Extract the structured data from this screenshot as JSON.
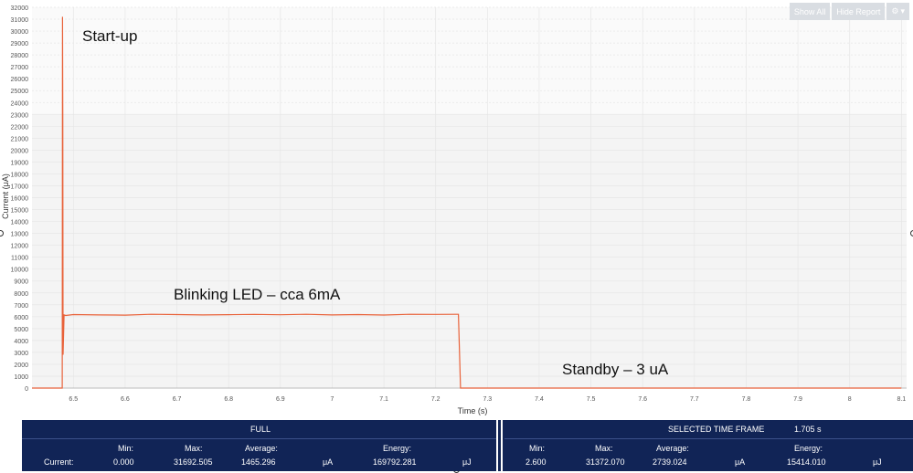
{
  "toolbar": {
    "show_all": "Show All",
    "hide_report": "Hide Report",
    "settings_icon": "gear-icon",
    "dropdown_icon": "chevron-down-icon"
  },
  "annotations": {
    "startup": "Start-up",
    "blinking": "Blinking LED – cca 6mA",
    "standby": "Standby – 3 uA"
  },
  "colors": {
    "trace": "#e8623a",
    "report_bg": "#112456",
    "selection_band": "#f4f4f4"
  },
  "chart_data": {
    "type": "line",
    "xlabel": "Time (s)",
    "ylabel": "Current (μA)",
    "xlim": [
      6.42,
      8.11
    ],
    "ylim": [
      0,
      32000
    ],
    "x_ticks": [
      "6.5",
      "6.6",
      "6.7",
      "6.8",
      "6.9",
      "7",
      "7.1",
      "7.2",
      "7.3",
      "7.4",
      "7.5",
      "7.6",
      "7.7",
      "7.8",
      "7.9",
      "8",
      "8.1"
    ],
    "y_ticks": [
      "0",
      "1000",
      "2000",
      "3000",
      "4000",
      "5000",
      "6000",
      "7000",
      "8000",
      "9000",
      "10000",
      "11000",
      "12000",
      "13000",
      "14000",
      "15000",
      "16000",
      "17000",
      "18000",
      "19000",
      "20000",
      "21000",
      "22000",
      "23000",
      "24000",
      "25000",
      "26000",
      "27000",
      "28000",
      "29000",
      "30000",
      "31000",
      "32000"
    ],
    "selection_y_range": [
      0,
      23000
    ],
    "series": [
      {
        "x": [
          6.42,
          6.4785,
          6.479,
          6.4795,
          6.48,
          6.482,
          6.485,
          6.5,
          6.55,
          6.6,
          6.65,
          6.7,
          6.75,
          6.8,
          6.85,
          6.9,
          6.95,
          7.0,
          7.05,
          7.1,
          7.15,
          7.2,
          7.24,
          7.244,
          7.248,
          7.3,
          7.5,
          7.8,
          8.1
        ],
        "y": [
          0,
          0,
          31200,
          23000,
          2800,
          6150,
          6100,
          6180,
          6150,
          6130,
          6200,
          6180,
          6150,
          6170,
          6190,
          6160,
          6200,
          6150,
          6180,
          6140,
          6200,
          6190,
          6200,
          6200,
          3,
          3,
          3,
          3,
          3
        ]
      }
    ]
  },
  "report": {
    "full": {
      "title": "FULL",
      "row_label": "Current:",
      "headers": [
        "Min:",
        "Max:",
        "Average:",
        "Energy:"
      ],
      "values": [
        "0.000",
        "31692.505",
        "1465.296",
        "169792.281"
      ],
      "units": [
        "μA",
        "μJ"
      ]
    },
    "selected": {
      "title": "SELECTED TIME FRAME",
      "duration": "1.705 s",
      "headers": [
        "Min:",
        "Max:",
        "Average:",
        "Energy:"
      ],
      "values": [
        "2.600",
        "31372.070",
        "2739.024",
        "15414.010"
      ],
      "units": [
        "μA",
        "μJ"
      ]
    }
  }
}
